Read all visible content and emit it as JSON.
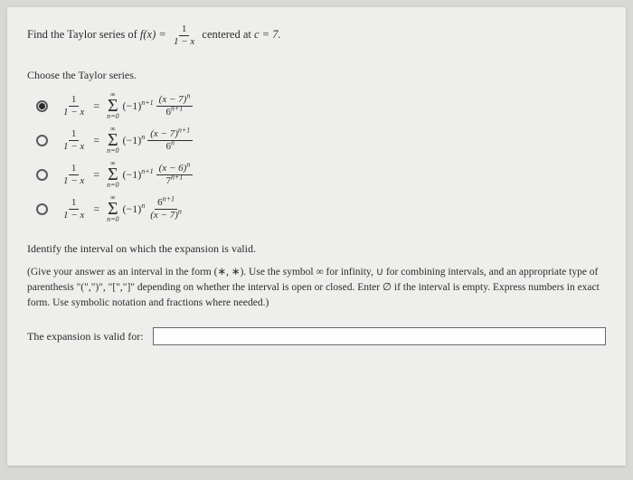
{
  "prompt": {
    "prefix": "Find the Taylor series of ",
    "func": "f(x) =",
    "frac_num": "1",
    "frac_den": "1 − x",
    "suffix": " centered at ",
    "center": "c = 7."
  },
  "choose": "Choose the Taylor series.",
  "options": [
    {
      "selected": true,
      "lhs_num": "1",
      "lhs_den": "1 − x",
      "sum_top": "∞",
      "sum_bot": "n=0",
      "coeff_base": "(−1)",
      "coeff_exp": "n+1",
      "rhs_num_base": "(x − 7)",
      "rhs_num_exp": "n",
      "rhs_den_base": "6",
      "rhs_den_exp": "n+1"
    },
    {
      "selected": false,
      "lhs_num": "1",
      "lhs_den": "1 − x",
      "sum_top": "∞",
      "sum_bot": "n=0",
      "coeff_base": "(−1)",
      "coeff_exp": "n",
      "rhs_num_base": "(x − 7)",
      "rhs_num_exp": "n+1",
      "rhs_den_base": "6",
      "rhs_den_exp": "n"
    },
    {
      "selected": false,
      "lhs_num": "1",
      "lhs_den": "1 − x",
      "sum_top": "∞",
      "sum_bot": "n=0",
      "coeff_base": "(−1)",
      "coeff_exp": "n+1",
      "rhs_num_base": "(x − 6)",
      "rhs_num_exp": "n",
      "rhs_den_base": "7",
      "rhs_den_exp": "n+1"
    },
    {
      "selected": false,
      "lhs_num": "1",
      "lhs_den": "1 − x",
      "sum_top": "∞",
      "sum_bot": "n=0",
      "coeff_base": "(−1)",
      "coeff_exp": "n",
      "rhs_num_base": "6",
      "rhs_num_exp": "n+1",
      "rhs_den_base": "(x − 7)",
      "rhs_den_exp": "n"
    }
  ],
  "identify": "Identify the interval on which the expansion is valid.",
  "note": "(Give your answer as an interval in the form (∗, ∗). Use the symbol ∞ for infinity, ∪ for combining intervals, and an appropriate type of parenthesis \"(\",\")\", \"[\",\"]\" depending on whether the interval is open or closed. Enter ∅ if the interval is empty. Express numbers in exact form. Use symbolic notation and fractions where needed.)",
  "answer_label": "The expansion is valid for:",
  "colors": {
    "page_bg": "#eeeeec",
    "outer_bg": "#d8d8d6",
    "text": "#2c2c2c",
    "border": "#6a6a6a"
  }
}
